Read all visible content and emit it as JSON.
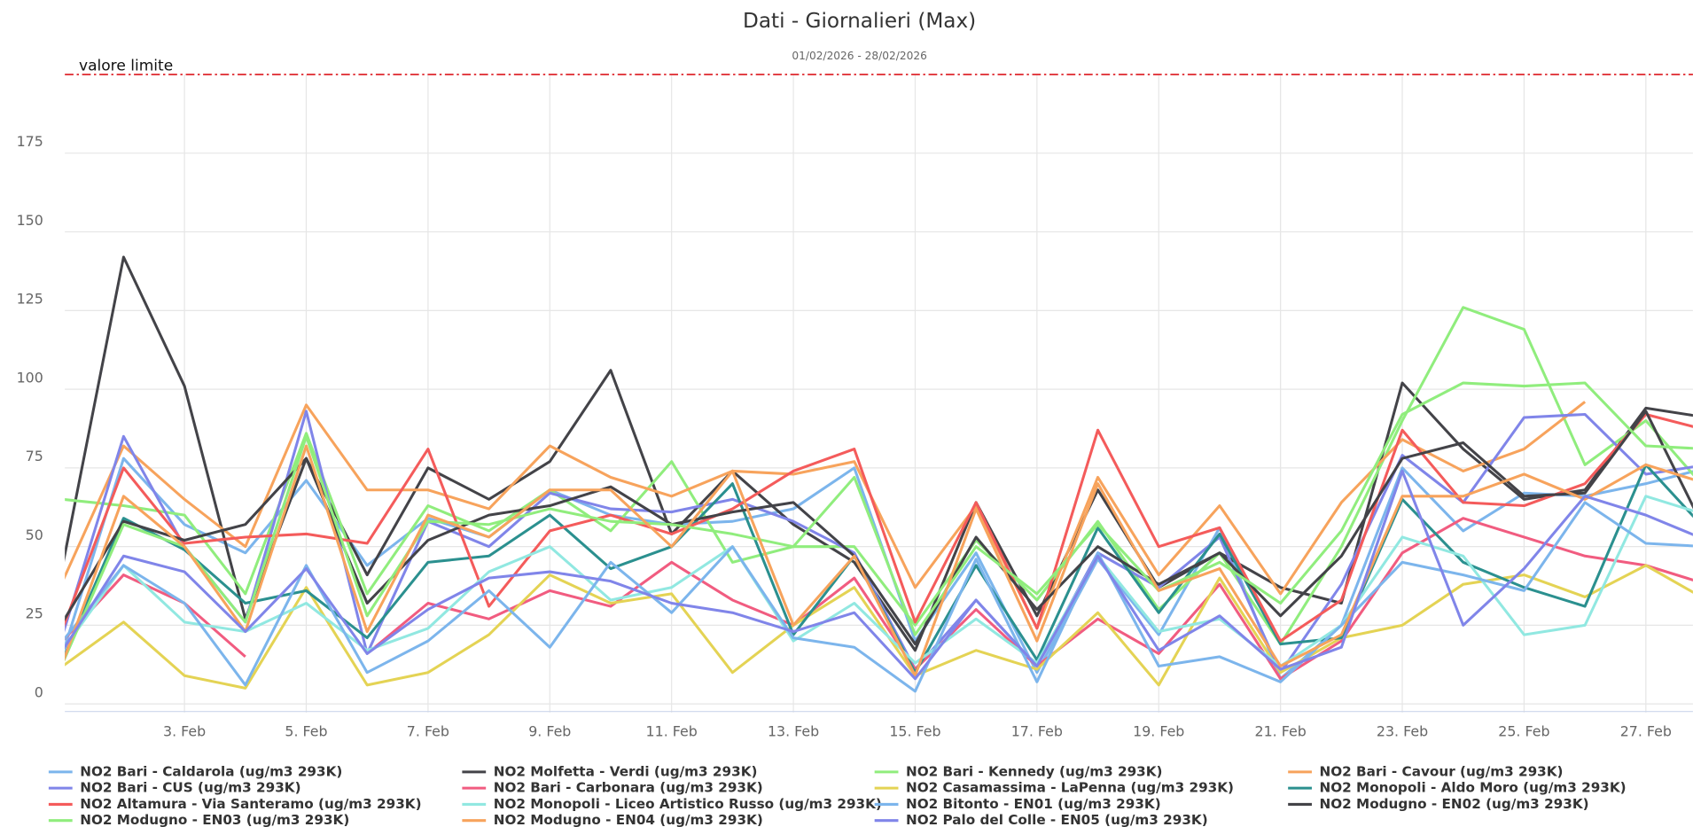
{
  "chart_data": {
    "type": "line",
    "title": "Dati - Giornalieri (Max)",
    "subtitle": "01/02/2026 - 28/02/2026",
    "limit_line": {
      "value": 200,
      "label": "valore limite",
      "color": "#e0353b"
    },
    "categories": [
      null,
      null,
      "3. Feb",
      null,
      "5. Feb",
      null,
      "7. Feb",
      null,
      "9. Feb",
      null,
      "11. Feb",
      null,
      "13. Feb",
      null,
      "15. Feb",
      null,
      "17. Feb",
      null,
      "19. Feb",
      null,
      "21. Feb",
      null,
      "23. Feb",
      null,
      "25. Feb",
      null,
      "27. Feb",
      null
    ],
    "ylim": [
      0,
      200
    ],
    "yticks": [
      0,
      25,
      50,
      75,
      100,
      125,
      150,
      175
    ],
    "grid": true,
    "series": [
      {
        "name": "NO2 Bari - Caldarola (ug/m3 293K)",
        "color": "#7cb5ec",
        "values": [
          16,
          78,
          57,
          48,
          71,
          44,
          59,
          53,
          68,
          60,
          57,
          58,
          62,
          75,
          20,
          48,
          10,
          46,
          22,
          56,
          8,
          25,
          75,
          55,
          67,
          66,
          70,
          75
        ]
      },
      {
        "name": "NO2 Molfetta - Verdi (ug/m3 293K)",
        "color": "#434348",
        "values": [
          44,
          142,
          101,
          27,
          78,
          41,
          75,
          65,
          77,
          106,
          54,
          74,
          57,
          45,
          17,
          64,
          28,
          68,
          37,
          48,
          37,
          32,
          102,
          81,
          65,
          68,
          94,
          91
        ]
      },
      {
        "name": "NO2 Bari - Kennedy (ug/m3 293K)",
        "color": "#90ed7d",
        "values": [
          65,
          63,
          60,
          35,
          86,
          35,
          63,
          55,
          68,
          55,
          77,
          45,
          50,
          50,
          25,
          52,
          33,
          58,
          30,
          48,
          19,
          50,
          90,
          126,
          119,
          76,
          90,
          68
        ]
      },
      {
        "name": "NO2 Bari - Cavour (ug/m3 293K)",
        "color": "#f7a35c",
        "values": [
          39,
          82,
          65,
          50,
          95,
          68,
          68,
          62,
          82,
          72,
          66,
          74,
          73,
          77,
          37,
          63,
          24,
          72,
          41,
          63,
          35,
          64,
          84,
          74,
          81,
          96,
          null,
          null
        ]
      },
      {
        "name": "NO2 Bari - CUS (ug/m3 293K)",
        "color": "#8085e9",
        "values": [
          22,
          85,
          50,
          26,
          93,
          16,
          58,
          50,
          67,
          62,
          61,
          65,
          58,
          48,
          11,
          33,
          12,
          48,
          37,
          53,
          10,
          38,
          79,
          64,
          91,
          92,
          73,
          76
        ]
      },
      {
        "name": "NO2 Bari - Carbonara (ug/m3 293K)",
        "color": "#f15c80",
        "values": [
          20,
          41,
          32,
          15,
          null,
          16,
          32,
          27,
          36,
          31,
          45,
          33,
          25,
          40,
          11,
          30,
          12,
          27,
          16,
          38,
          8,
          20,
          48,
          59,
          53,
          47,
          44,
          38
        ]
      },
      {
        "name": "NO2 Casamassima - LaPenna (ug/m3 293K)",
        "color": "#e4d354",
        "values": [
          12,
          26,
          9,
          5,
          37,
          6,
          10,
          22,
          41,
          32,
          35,
          10,
          25,
          37,
          9,
          17,
          11,
          29,
          6,
          40,
          10,
          21,
          25,
          38,
          41,
          34,
          44,
          33
        ]
      },
      {
        "name": "NO2 Monopoli - Aldo Moro (ug/m3 293K)",
        "color": "#2b908f",
        "values": [
          14,
          59,
          49,
          32,
          36,
          21,
          45,
          47,
          60,
          43,
          50,
          70,
          22,
          47,
          10,
          44,
          14,
          56,
          29,
          54,
          19,
          21,
          65,
          45,
          37,
          31,
          76,
          55
        ]
      },
      {
        "name": "NO2 Altamura - Via Santeramo (ug/m3 293K)",
        "color": "#f45b5b",
        "values": [
          24,
          75,
          51,
          53,
          54,
          51,
          81,
          31,
          55,
          60,
          54,
          62,
          74,
          81,
          26,
          64,
          24,
          87,
          50,
          56,
          20,
          33,
          87,
          64,
          63,
          70,
          92,
          87
        ]
      },
      {
        "name": "NO2 Monopoli - Liceo Artistico Russo (ug/m3 293K)",
        "color": "#91e8e1",
        "values": [
          17,
          44,
          26,
          23,
          32,
          17,
          24,
          42,
          50,
          33,
          37,
          50,
          20,
          32,
          13,
          27,
          13,
          47,
          23,
          27,
          12,
          25,
          53,
          47,
          22,
          25,
          66,
          60
        ]
      },
      {
        "name": "NO2 Bitonto - EN01 (ug/m3 293K)",
        "color": "#7cb5ec",
        "values": [
          20,
          44,
          32,
          6,
          44,
          10,
          20,
          36,
          18,
          45,
          29,
          50,
          21,
          18,
          4,
          46,
          7,
          48,
          12,
          15,
          7,
          25,
          45,
          41,
          36,
          64,
          51,
          50
        ]
      },
      {
        "name": "NO2 Modugno - EN02 (ug/m3 293K)",
        "color": "#434348",
        "values": [
          26,
          58,
          52,
          57,
          78,
          32,
          52,
          60,
          63,
          69,
          57,
          61,
          64,
          47,
          19,
          53,
          30,
          50,
          38,
          48,
          28,
          47,
          78,
          83,
          66,
          67,
          93,
          54
        ]
      },
      {
        "name": "NO2 Modugno - EN03 (ug/m3 293K)",
        "color": "#90ed7d",
        "values": [
          13,
          57,
          50,
          26,
          85,
          28,
          58,
          57,
          62,
          58,
          57,
          54,
          50,
          72,
          22,
          50,
          35,
          57,
          36,
          45,
          32,
          55,
          92,
          102,
          101,
          102,
          82,
          81
        ]
      },
      {
        "name": "NO2 Modugno - EN04 (ug/m3 293K)",
        "color": "#f7a35c",
        "values": [
          13,
          66,
          50,
          23,
          82,
          23,
          60,
          53,
          68,
          68,
          50,
          74,
          25,
          47,
          9,
          62,
          20,
          70,
          36,
          43,
          12,
          22,
          66,
          66,
          73,
          65,
          76,
          70
        ]
      },
      {
        "name": "NO2 Palo del Colle - EN05 (ug/m3 293K)",
        "color": "#8085e9",
        "values": [
          17,
          47,
          42,
          23,
          43,
          16,
          30,
          40,
          42,
          39,
          32,
          29,
          23,
          29,
          8,
          33,
          12,
          47,
          17,
          28,
          11,
          18,
          74,
          25,
          43,
          66,
          60,
          52
        ]
      }
    ]
  }
}
